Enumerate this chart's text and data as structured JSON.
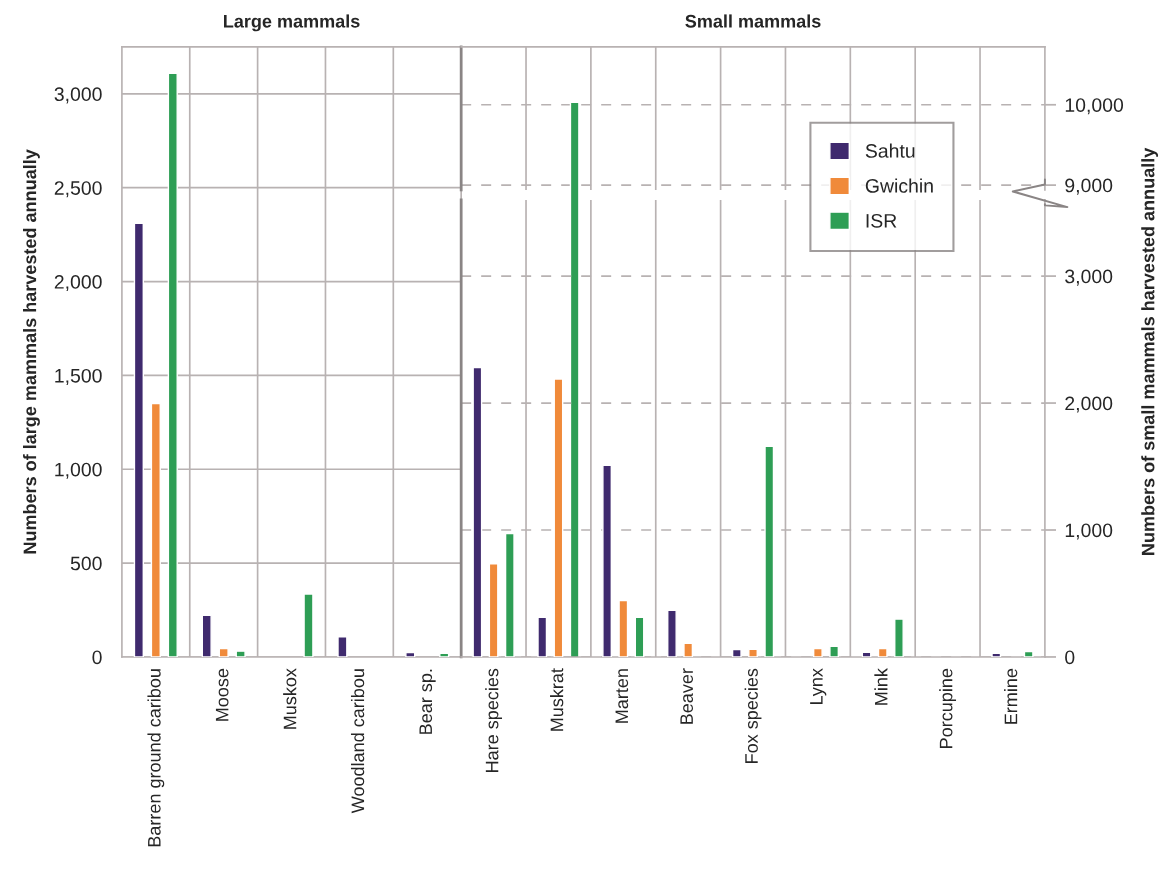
{
  "chart_data": [
    {
      "type": "bar",
      "title": "Large mammals",
      "ylabel": "Numbers of large mammals harvested annually",
      "categories": [
        "Barren ground caribou",
        "Moose",
        "Muskox",
        "Woodland caribou",
        "Bear sp."
      ],
      "series": [
        {
          "color": "#3f2a6e",
          "values": [
            2310,
            222,
            null,
            107,
            23
          ]
        },
        {
          "color": "#f08a3a",
          "values": [
            1350,
            45,
            null,
            null,
            null
          ]
        },
        {
          "color": "#2e9e55",
          "values": [
            3110,
            31,
            335,
            null,
            19
          ]
        }
      ],
      "ylim": [
        0,
        3250
      ],
      "yticks": [
        0,
        500,
        {
          "value": 1000,
          "label": "1,000"
        },
        {
          "value": 1500,
          "label": "1,500"
        },
        {
          "value": 2000,
          "label": "2,000"
        },
        {
          "value": 2500,
          "label": "2,500"
        },
        {
          "value": 3000,
          "label": "3,000"
        }
      ],
      "grid": true
    },
    {
      "type": "bar",
      "title": "Small mammals",
      "categories": [
        null,
        null,
        null,
        null,
        null,
        null,
        null,
        null,
        null
      ],
      "series": [
        {
          "color": "#2e9e55",
          "axis": "y2",
          "values": [
            null,
            10030,
            null,
            null,
            null,
            null,
            null,
            null,
            null
          ]
        }
      ],
      "y2lim": [
        8940,
        10720
      ],
      "y2ticks": [
        {
          "value": 9000,
          "label": "9,000"
        },
        {
          "value": 10000,
          "label": "10,000"
        }
      ],
      "tick_labels": "y",
      "grid": true
    },
    {
      "type": "bar",
      "y2label": "Numbers of small mammals harvested annually",
      "categories": [
        "Hare species",
        "Muskrat",
        "Marten",
        "Beaver",
        "Fox species",
        "Lynx",
        "Mink",
        "Porcupine",
        "Ermine"
      ],
      "series": [
        {
          "name": "Sahtu",
          "color": "#3f2a6e",
          "axis": "y2",
          "values": [
            2280,
            313,
            1510,
            368,
            58,
            null,
            37,
            null,
            28
          ]
        },
        {
          "name": "Gwichin",
          "color": "#f08a3a",
          "axis": "y2",
          "values": [
            733,
            2190,
            445,
            107,
            61,
            67,
            67,
            null,
            null
          ]
        },
        {
          "name": "ISR",
          "color": "#2e9e55",
          "axis": "y2",
          "values": [
            972,
            null,
            313,
            null,
            1660,
            83,
            298,
            null,
            43
          ]
        }
      ],
      "y2lim": [
        0,
        3600
      ],
      "y2ticks": [
        0,
        {
          "value": 1000,
          "label": "1,000"
        },
        {
          "value": 2000,
          "label": "2,000"
        },
        {
          "value": 3000,
          "label": "3,000"
        }
      ],
      "grid": true,
      "legend": "top right"
    }
  ]
}
